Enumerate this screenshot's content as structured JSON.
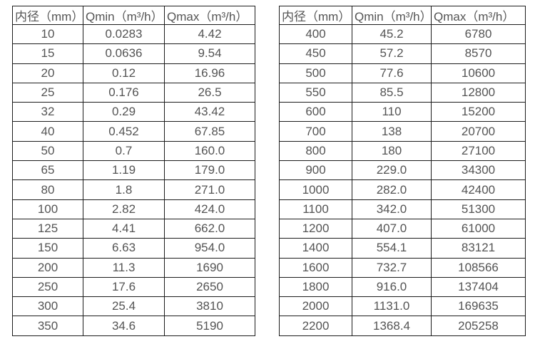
{
  "colors": {
    "border": "#1c1c1c",
    "text": "#545454",
    "background": "#ffffff"
  },
  "chart_data": [
    {
      "type": "table",
      "name": "flow-rate-table-small-diameters",
      "headers": [
        "内径（mm）",
        "Qmin（m³/h）",
        "Qmax（m³/h）"
      ],
      "rows": [
        [
          "10",
          "0.0283",
          "4.42"
        ],
        [
          "15",
          "0.0636",
          "9.54"
        ],
        [
          "20",
          "0.12",
          "16.96"
        ],
        [
          "25",
          "0.176",
          "26.5"
        ],
        [
          "32",
          "0.29",
          "43.42"
        ],
        [
          "40",
          "0.452",
          "67.85"
        ],
        [
          "50",
          "0.7",
          "160.0"
        ],
        [
          "65",
          "1.19",
          "179.0"
        ],
        [
          "80",
          "1.8",
          "271.0"
        ],
        [
          "100",
          "2.82",
          "424.0"
        ],
        [
          "125",
          "4.41",
          "662.0"
        ],
        [
          "150",
          "6.63",
          "954.0"
        ],
        [
          "200",
          "11.3",
          "1690"
        ],
        [
          "250",
          "17.6",
          "2650"
        ],
        [
          "300",
          "25.4",
          "3810"
        ],
        [
          "350",
          "34.6",
          "5190"
        ]
      ]
    },
    {
      "type": "table",
      "name": "flow-rate-table-large-diameters",
      "headers": [
        "内径（mm）",
        "Qmin（m³/h）",
        "Qmax（m³/h）"
      ],
      "rows": [
        [
          "400",
          "45.2",
          "6780"
        ],
        [
          "450",
          "57.2",
          "8570"
        ],
        [
          "500",
          "77.6",
          "10600"
        ],
        [
          "550",
          "85.5",
          "12800"
        ],
        [
          "600",
          "110",
          "15200"
        ],
        [
          "700",
          "138",
          "20700"
        ],
        [
          "800",
          "180",
          "27100"
        ],
        [
          "900",
          "229.0",
          "34300"
        ],
        [
          "1000",
          "282.0",
          "42400"
        ],
        [
          "1100",
          "342.0",
          "51300"
        ],
        [
          "1200",
          "407.0",
          "61000"
        ],
        [
          "1400",
          "554.1",
          "83121"
        ],
        [
          "1600",
          "732.7",
          "108566"
        ],
        [
          "1800",
          "916.0",
          "137404"
        ],
        [
          "2000",
          "1131.0",
          "169635"
        ],
        [
          "2200",
          "1368.4",
          "205258"
        ]
      ]
    }
  ]
}
